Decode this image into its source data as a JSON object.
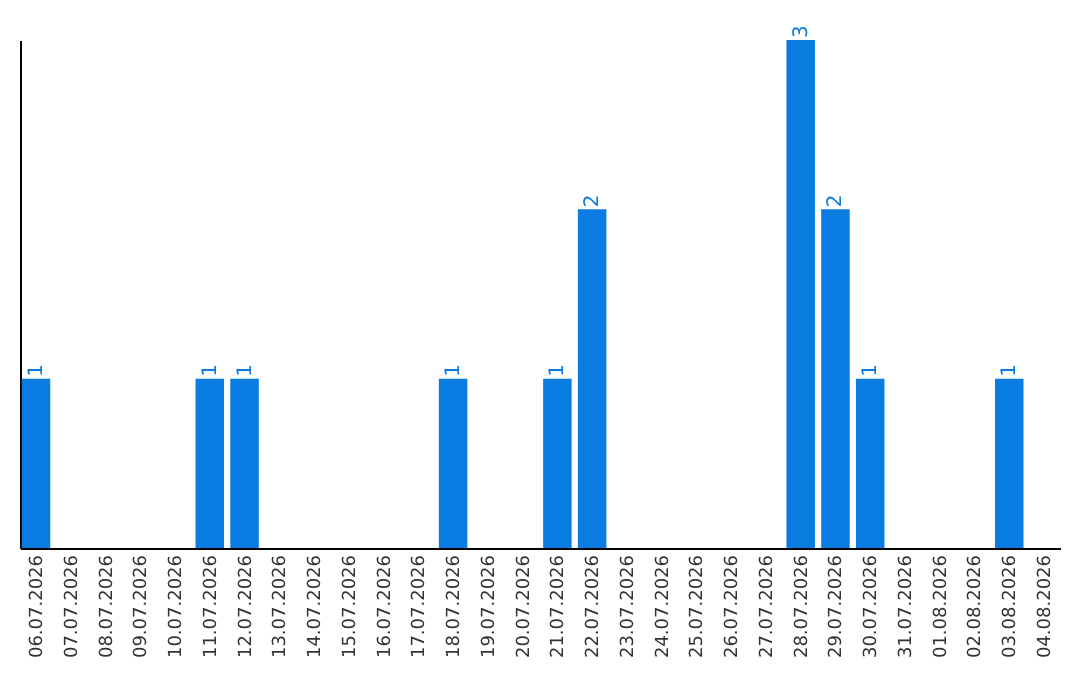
{
  "chart_data": {
    "type": "bar",
    "categories": [
      "06.07.2026",
      "07.07.2026",
      "08.07.2026",
      "09.07.2026",
      "10.07.2026",
      "11.07.2026",
      "12.07.2026",
      "13.07.2026",
      "14.07.2026",
      "15.07.2026",
      "16.07.2026",
      "17.07.2026",
      "18.07.2026",
      "19.07.2026",
      "20.07.2026",
      "21.07.2026",
      "22.07.2026",
      "23.07.2026",
      "24.07.2026",
      "25.07.2026",
      "26.07.2026",
      "27.07.2026",
      "28.07.2026",
      "29.07.2026",
      "30.07.2026",
      "31.07.2026",
      "01.08.2026",
      "02.08.2026",
      "03.08.2026",
      "04.08.2026"
    ],
    "values": [
      1,
      0,
      0,
      0,
      0,
      1,
      1,
      0,
      0,
      0,
      0,
      0,
      1,
      0,
      0,
      1,
      2,
      0,
      0,
      0,
      0,
      0,
      3,
      2,
      1,
      0,
      0,
      0,
      1,
      0
    ],
    "value_labels": [
      "1",
      null,
      null,
      null,
      null,
      "1",
      "1",
      null,
      null,
      null,
      null,
      null,
      "1",
      null,
      null,
      "1",
      "2",
      null,
      null,
      null,
      null,
      null,
      "3",
      "2",
      "1",
      null,
      null,
      null,
      "1",
      null
    ],
    "color": "#0a7be0",
    "ylim": [
      0,
      3
    ],
    "tick_labels": "x"
  }
}
